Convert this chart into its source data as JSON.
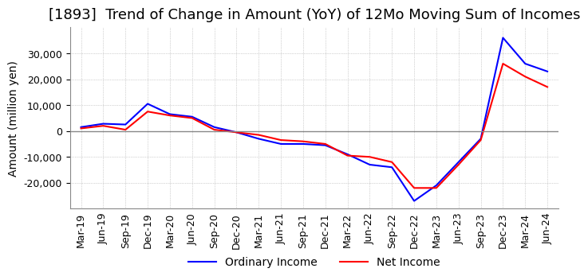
{
  "title": "[1893]  Trend of Change in Amount (YoY) of 12Mo Moving Sum of Incomes",
  "ylabel": "Amount (million yen)",
  "ylim": [
    -30000,
    40000
  ],
  "yticks": [
    -20000,
    -10000,
    0,
    10000,
    20000,
    30000
  ],
  "x_labels": [
    "Mar-19",
    "Jun-19",
    "Sep-19",
    "Dec-19",
    "Mar-20",
    "Jun-20",
    "Sep-20",
    "Dec-20",
    "Mar-21",
    "Jun-21",
    "Sep-21",
    "Dec-21",
    "Mar-22",
    "Jun-22",
    "Sep-22",
    "Dec-22",
    "Mar-23",
    "Jun-23",
    "Sep-23",
    "Dec-23",
    "Mar-24",
    "Jun-24"
  ],
  "ordinary_income": [
    1500,
    2800,
    2500,
    10500,
    6500,
    5500,
    1500,
    -500,
    -3000,
    -5000,
    -5000,
    -5500,
    -9000,
    -13000,
    -14000,
    -27000,
    -21000,
    -12000,
    -3000,
    36000,
    26000,
    23000
  ],
  "net_income": [
    1000,
    2000,
    500,
    7500,
    6000,
    5000,
    500,
    -500,
    -1500,
    -3500,
    -4000,
    -5000,
    -9500,
    -10000,
    -12000,
    -22000,
    -22000,
    -13000,
    -3500,
    26000,
    21000,
    17000
  ],
  "ordinary_color": "#0000ff",
  "net_color": "#ff0000",
  "background_color": "#ffffff",
  "grid_color": "#aaaaaa",
  "zeroline_color": "#888888",
  "title_fontsize": 13,
  "label_fontsize": 10,
  "tick_fontsize": 9
}
